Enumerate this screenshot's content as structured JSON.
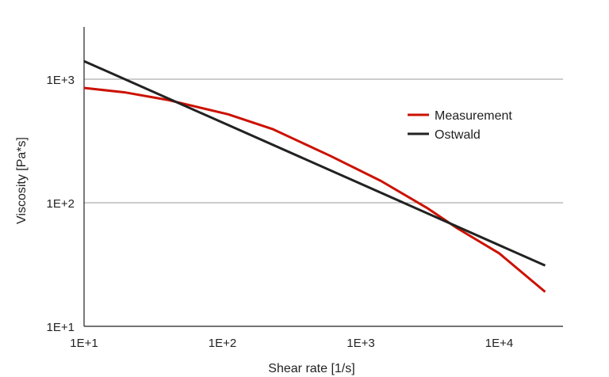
{
  "chart_data": {
    "type": "line",
    "title": "",
    "xlabel": "Shear rate [1/s]",
    "ylabel": "Viscosity [Pa*s]",
    "x_scale": "log",
    "y_scale": "log",
    "xlim": [
      10,
      30000
    ],
    "ylim": [
      10,
      2600
    ],
    "x_ticks": [
      10,
      100,
      1000,
      10000
    ],
    "x_tick_labels": [
      "1E+1",
      "1E+2",
      "1E+3",
      "1E+4"
    ],
    "y_ticks": [
      10,
      100,
      1000
    ],
    "y_tick_labels": [
      "1E+1",
      "1E+2",
      "1E+3"
    ],
    "grid": "horizontal",
    "legend_position": "right",
    "series": [
      {
        "name": "Measurement",
        "color": "#cc1100",
        "points": [
          [
            10,
            850
          ],
          [
            20,
            780
          ],
          [
            40,
            680
          ],
          [
            110,
            520
          ],
          [
            230,
            395
          ],
          [
            600,
            240
          ],
          [
            1400,
            150
          ],
          [
            3000,
            91
          ],
          [
            5000,
            62
          ],
          [
            10000,
            39
          ],
          [
            21500,
            19
          ]
        ]
      },
      {
        "name": "Ostwald",
        "color": "#222222",
        "points": [
          [
            10,
            1400
          ],
          [
            21500,
            31
          ]
        ]
      }
    ]
  }
}
